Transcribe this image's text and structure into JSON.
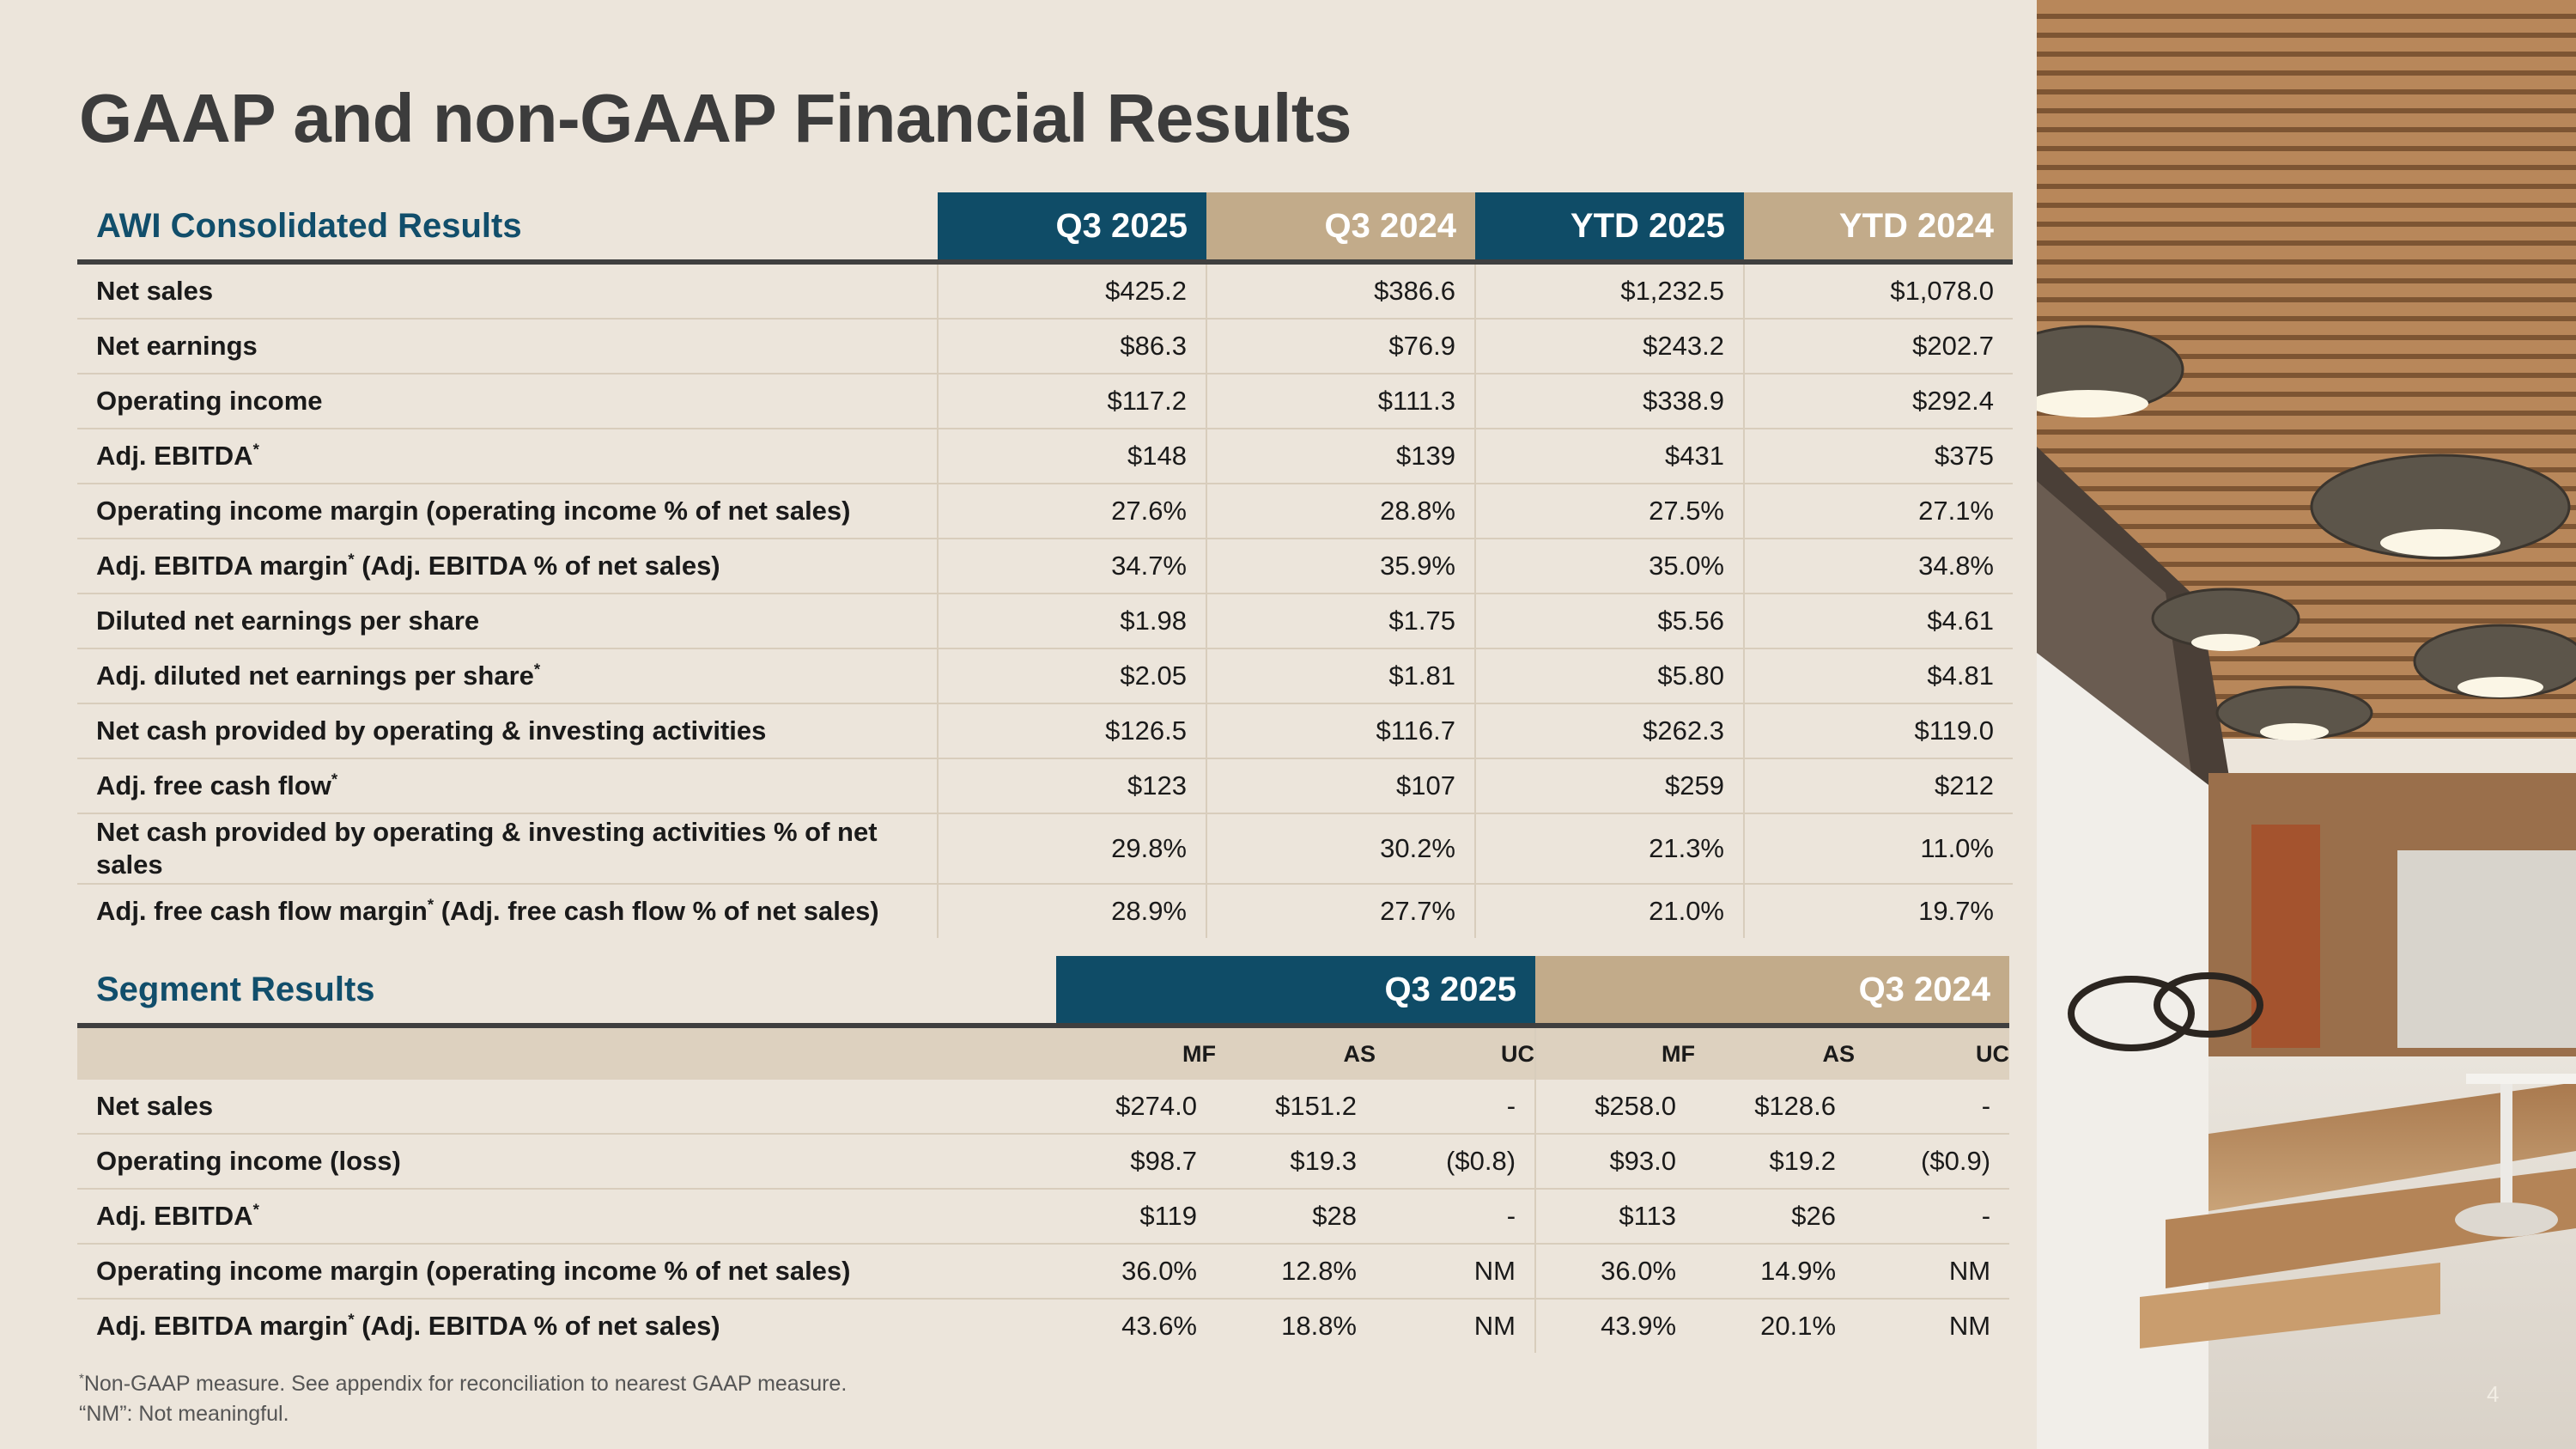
{
  "title": "GAAP and non-GAAP Financial Results",
  "consolidated": {
    "heading": "AWI Consolidated Results",
    "columns": [
      "Q3 2025",
      "Q3 2024",
      "YTD 2025",
      "YTD 2024"
    ],
    "rows": [
      {
        "label": "Net sales",
        "values": [
          "$425.2",
          "$386.6",
          "$1,232.5",
          "$1,078.0"
        ]
      },
      {
        "label": "Net earnings",
        "values": [
          "$86.3",
          "$76.9",
          "$243.2",
          "$202.7"
        ]
      },
      {
        "label": "Operating income",
        "values": [
          "$117.2",
          "$111.3",
          "$338.9",
          "$292.4"
        ]
      },
      {
        "label": "Adj. EBITDA",
        "values": [
          "$148",
          "$139",
          "$431",
          "$375"
        ]
      },
      {
        "label": "Operating income margin (operating income % of net sales)",
        "values": [
          "27.6%",
          "28.8%",
          "27.5%",
          "27.1%"
        ]
      },
      {
        "label": "Adj. EBITDA margin",
        "label_suffix": " (Adj. EBITDA % of net sales)",
        "values": [
          "34.7%",
          "35.9%",
          "35.0%",
          "34.8%"
        ]
      },
      {
        "label": "Diluted net earnings per share",
        "values": [
          "$1.98",
          "$1.75",
          "$5.56",
          "$4.61"
        ]
      },
      {
        "label": "Adj. diluted net earnings per share",
        "values": [
          "$2.05",
          "$1.81",
          "$5.80",
          "$4.81"
        ]
      },
      {
        "label": "Net cash provided by operating & investing activities",
        "values": [
          "$126.5",
          "$116.7",
          "$262.3",
          "$119.0"
        ]
      },
      {
        "label": "Adj. free cash flow",
        "values": [
          "$123",
          "$107",
          "$259",
          "$212"
        ]
      },
      {
        "label": "Net cash provided by operating & investing activities % of net sales",
        "values": [
          "29.8%",
          "30.2%",
          "21.3%",
          "11.0%"
        ]
      },
      {
        "label": "Adj. free cash flow margin",
        "label_suffix": " (Adj. free cash flow % of net sales)",
        "values": [
          "28.9%",
          "27.7%",
          "21.0%",
          "19.7%"
        ]
      }
    ]
  },
  "segment": {
    "heading": "Segment Results",
    "periods": [
      "Q3 2025",
      "Q3 2024"
    ],
    "subcolumns": [
      "MF",
      "AS",
      "UC",
      "MF",
      "AS",
      "UC"
    ],
    "rows": [
      {
        "label": "Net sales",
        "values": [
          "$274.0",
          "$151.2",
          "-",
          "$258.0",
          "$128.6",
          "-"
        ]
      },
      {
        "label": "Operating income (loss)",
        "values": [
          "$98.7",
          "$19.3",
          "($0.8)",
          "$93.0",
          "$19.2",
          "($0.9)"
        ]
      },
      {
        "label": "Adj. EBITDA",
        "values": [
          "$119",
          "$28",
          "-",
          "$113",
          "$26",
          "-"
        ]
      },
      {
        "label": "Operating income margin (operating income % of net sales)",
        "values": [
          "36.0%",
          "12.8%",
          "NM",
          "36.0%",
          "14.9%",
          "NM"
        ]
      },
      {
        "label": "Adj. EBITDA margin",
        "label_suffix": " (Adj. EBITDA % of net sales)",
        "values": [
          "43.6%",
          "18.8%",
          "NM",
          "43.9%",
          "20.1%",
          "NM"
        ]
      }
    ]
  },
  "asterisk": "*",
  "footnotes": {
    "line1": "Non-GAAP measure. See appendix for reconciliation to nearest GAAP measure.",
    "line2": "“NM”: Not meaningful."
  },
  "page_number": "4",
  "colors": {
    "background": "#ece5db",
    "header_blue": "#0f4c67",
    "header_tan": "#c2ab8a",
    "title_gray": "#3c3c3c"
  }
}
